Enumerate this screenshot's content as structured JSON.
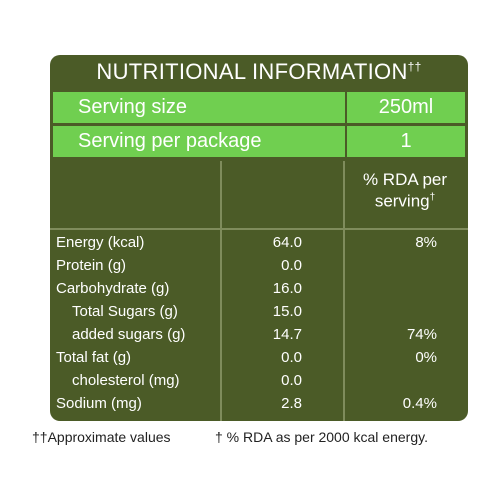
{
  "title": "NUTRITIONAL INFORMATION",
  "title_mark": "††",
  "serving": [
    {
      "label": "Serving size",
      "value": "250ml"
    },
    {
      "label": "Serving per package",
      "value": "1"
    }
  ],
  "rda_header": "% RDA per serving",
  "rda_header_mark": "†",
  "rows": [
    {
      "label": "Energy (kcal)",
      "value": "64.0",
      "rda": "8%"
    },
    {
      "label": "Protein (g)",
      "value": "0.0"
    },
    {
      "label": "Carbohydrate (g)",
      "value": "16.0"
    },
    {
      "label": "Total Sugars (g)",
      "value": "15.0",
      "level": 1
    },
    {
      "label": "added sugars (g)",
      "value": "14.7",
      "rda": "74%",
      "level": 1
    },
    {
      "label": "Total fat (g)",
      "value": "0.0",
      "rda": "0%"
    },
    {
      "label": "cholesterol (mg)",
      "value": "0.0",
      "level": 1
    },
    {
      "label": "Sodium (mg)",
      "value": "2.8",
      "rda": "0.4%"
    }
  ],
  "footnotes": [
    "††Approximate values",
    "† % RDA as per 2000 kcal energy."
  ]
}
